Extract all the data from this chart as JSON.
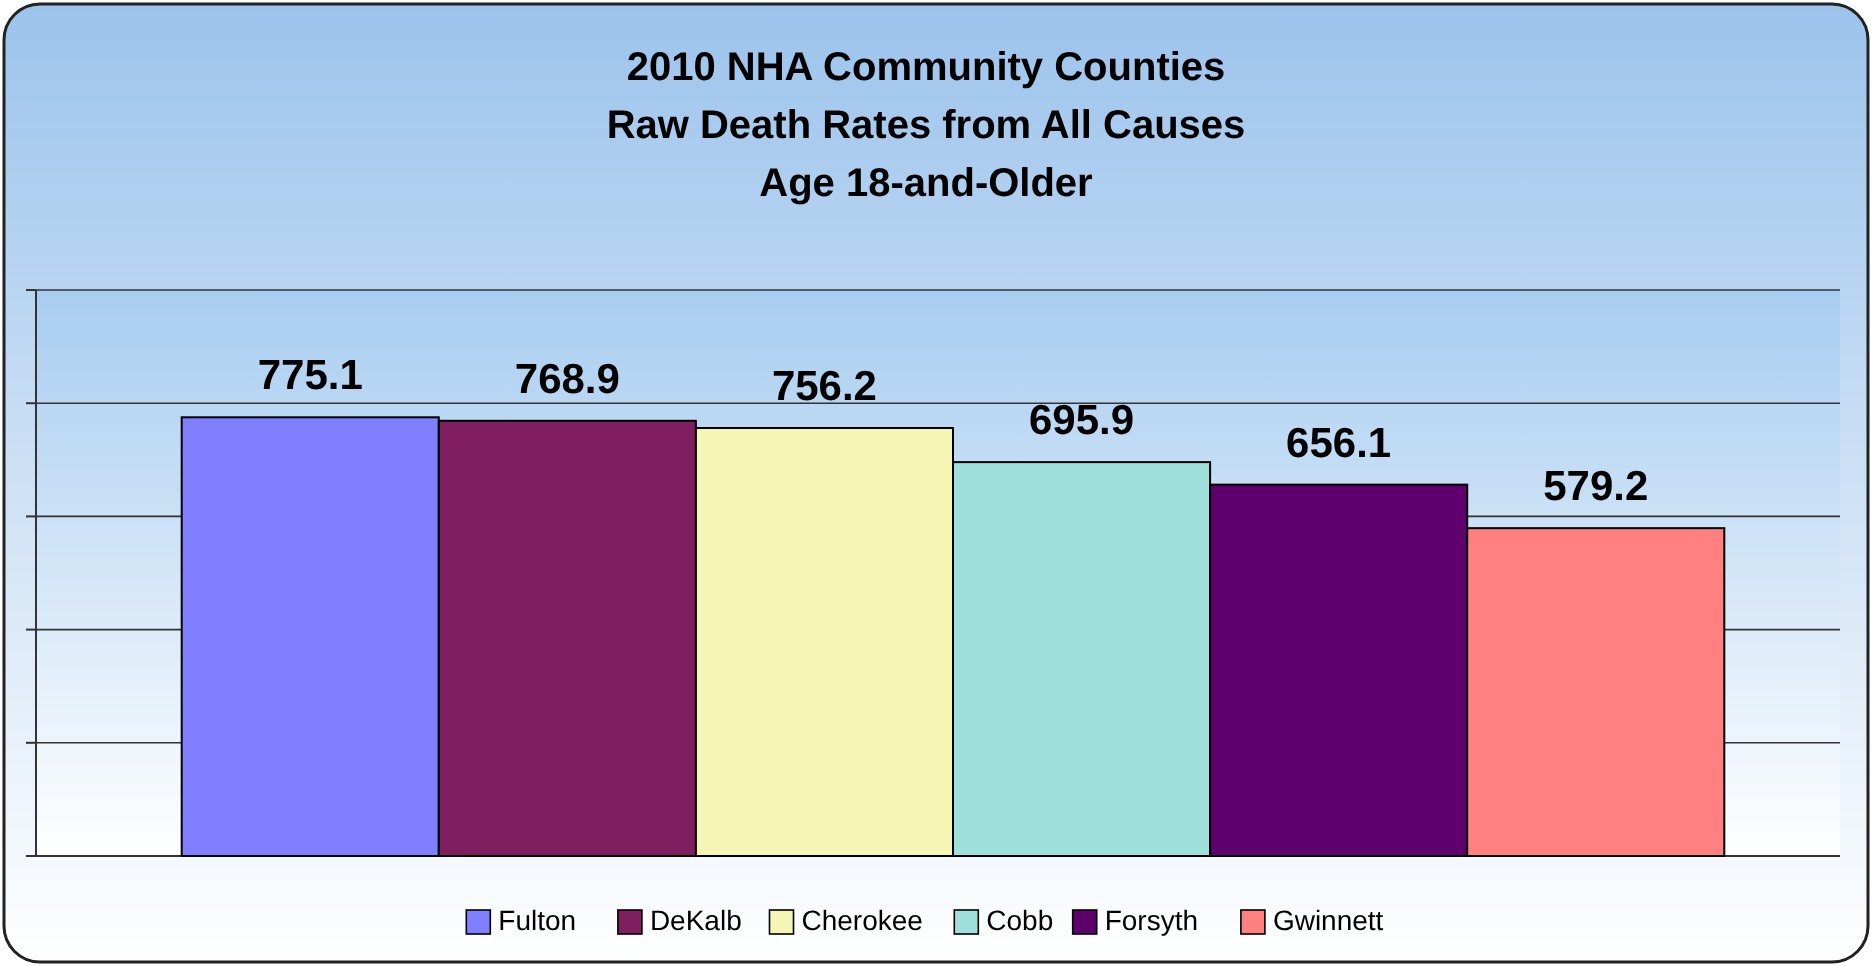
{
  "chart_data": {
    "type": "bar",
    "title": "2010 NHA Community Counties\nRaw Death Rates from All Causes\nAge 18-and-Older",
    "categories": [
      null
    ],
    "series": [
      {
        "name": "Fulton",
        "color": "#7f7fff",
        "values": [
          775.1
        ]
      },
      {
        "name": "DeKalb",
        "color": "#7f1f5f",
        "values": [
          768.9
        ]
      },
      {
        "name": "Cherokee",
        "color": "#f5f5b5",
        "values": [
          756.2
        ]
      },
      {
        "name": "Cobb",
        "color": "#a0e0dc",
        "values": [
          695.9
        ]
      },
      {
        "name": "Forsyth",
        "color": "#5f006f",
        "values": [
          656.1
        ]
      },
      {
        "name": "Gwinnett",
        "color": "#ff8080",
        "values": [
          579.2
        ]
      }
    ],
    "ylim": [
      0,
      1000
    ],
    "yticks": [
      {
        "value": 0,
        "label": null
      },
      {
        "value": 200,
        "label": null
      },
      {
        "value": 400,
        "label": null
      },
      {
        "value": 600,
        "label": null
      },
      {
        "value": 800,
        "label": null
      },
      {
        "value": 1000,
        "label": null
      }
    ],
    "grid": "y",
    "data_labels": true,
    "legend": "bottom"
  }
}
